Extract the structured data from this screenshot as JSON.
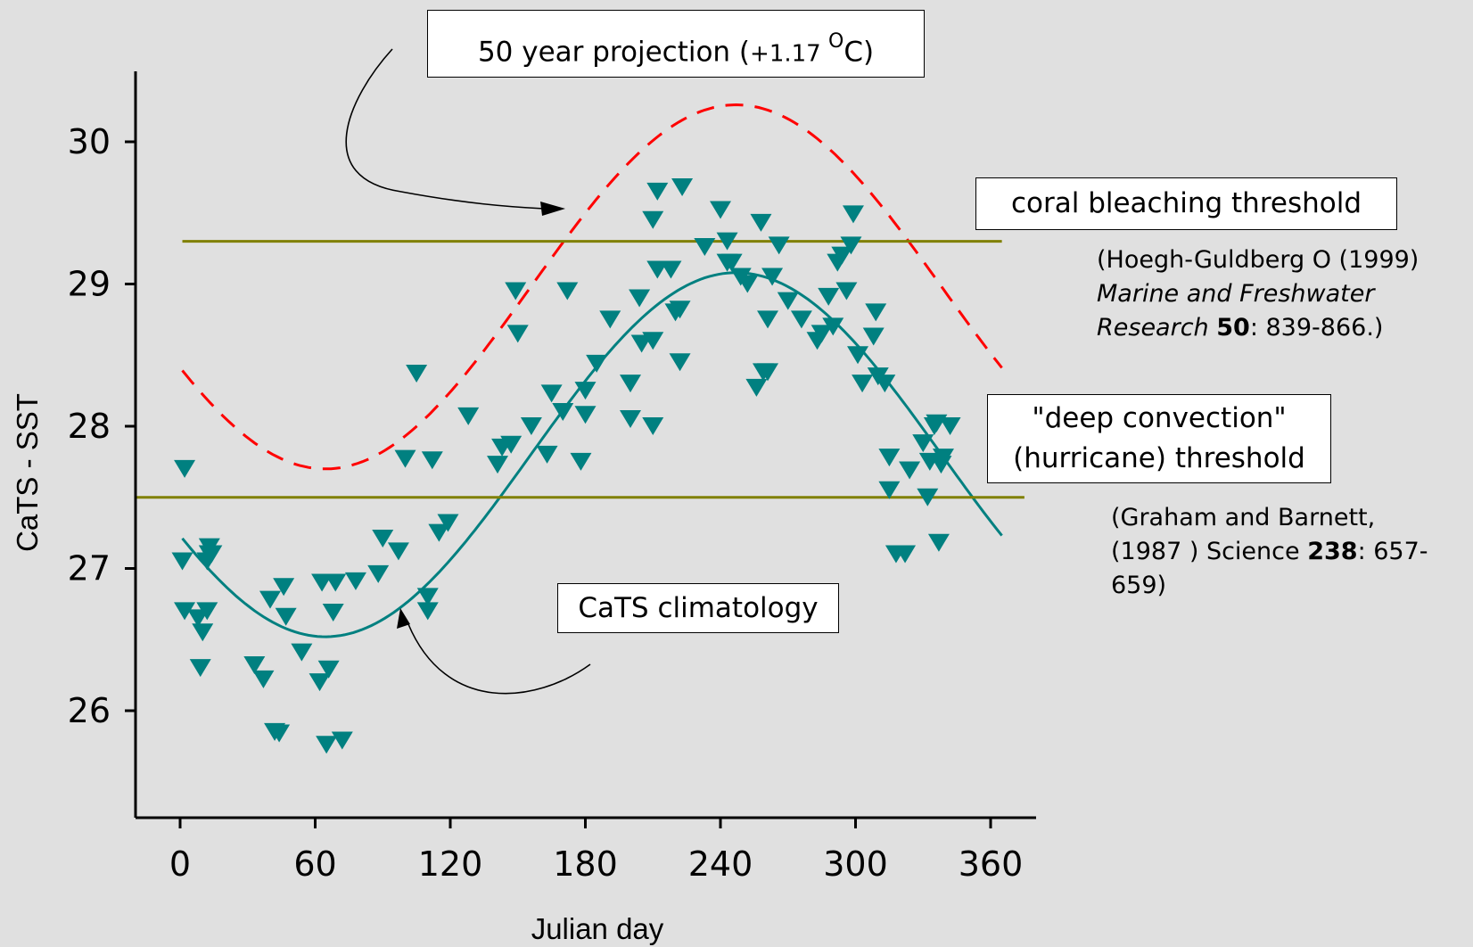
{
  "chart_data": {
    "type": "scatter",
    "title": "",
    "xlabel": "Julian day",
    "ylabel": "CaTS - SST",
    "xlim": [
      -20,
      380
    ],
    "ylim": [
      25.25,
      30.5
    ],
    "xticks": [
      0,
      60,
      120,
      180,
      240,
      300,
      360
    ],
    "yticks": [
      26,
      27,
      28,
      29,
      30
    ],
    "grid": false,
    "colors": {
      "background": "#e0e0e0",
      "points": "#008080",
      "climatology": "#008080",
      "projection": "#ff0000",
      "thresholds": "#808000"
    },
    "series": [
      {
        "kind": "points",
        "marker": "down-triangle",
        "x": [
          2,
          1,
          2,
          8,
          10,
          12,
          14,
          12,
          13,
          9,
          13,
          33,
          37,
          40,
          42,
          44,
          46,
          47,
          54,
          62,
          63,
          65,
          66,
          68,
          69,
          72,
          78,
          88,
          90,
          97,
          100,
          105,
          110,
          110,
          112,
          115,
          119,
          128,
          141,
          143,
          147,
          149,
          150,
          156,
          163,
          165,
          170,
          172,
          178,
          180,
          180,
          185,
          191,
          200,
          200,
          205,
          204,
          210,
          210,
          212,
          210,
          212,
          218,
          220,
          222,
          222,
          223,
          233,
          240,
          243,
          243,
          245,
          249,
          252,
          256,
          259,
          258,
          261,
          261,
          263,
          266,
          270,
          276,
          283,
          285,
          288,
          290,
          292,
          294,
          296,
          298,
          299,
          301,
          303,
          308,
          310,
          309,
          313,
          315,
          315,
          318,
          322,
          324,
          330,
          332,
          333,
          335,
          336,
          337,
          338,
          339,
          342
        ],
        "y": [
          27.7,
          27.05,
          26.7,
          26.65,
          26.55,
          26.7,
          27.1,
          27.05,
          27.1,
          26.3,
          27.15,
          26.32,
          26.22,
          26.78,
          25.85,
          25.84,
          26.87,
          26.66,
          26.41,
          26.2,
          26.9,
          25.76,
          26.29,
          26.69,
          26.9,
          25.79,
          26.91,
          26.96,
          27.21,
          27.12,
          27.77,
          28.37,
          26.7,
          26.8,
          27.76,
          27.25,
          27.32,
          28.07,
          27.73,
          27.85,
          27.87,
          28.95,
          28.65,
          28.0,
          27.8,
          28.23,
          28.1,
          28.95,
          27.75,
          28.08,
          28.25,
          28.44,
          28.75,
          28.3,
          28.05,
          28.58,
          28.9,
          28.0,
          28.6,
          29.1,
          29.45,
          29.65,
          29.1,
          28.8,
          28.82,
          28.45,
          29.68,
          29.26,
          29.52,
          29.3,
          29.15,
          29.15,
          29.05,
          29.0,
          28.27,
          28.38,
          29.43,
          28.75,
          28.38,
          29.05,
          29.27,
          28.88,
          28.75,
          28.6,
          28.65,
          28.91,
          28.7,
          29.15,
          29.2,
          28.95,
          29.27,
          29.49,
          28.5,
          28.3,
          28.63,
          28.35,
          28.8,
          28.3,
          27.55,
          27.78,
          27.1,
          27.1,
          27.69,
          27.88,
          27.5,
          27.75,
          28.0,
          28.02,
          27.18,
          27.73,
          27.78,
          28.0
        ]
      },
      {
        "name": "CaTS climatology",
        "kind": "line",
        "style": "solid",
        "mean": 27.8,
        "amplitude": 1.28,
        "peak_day": 247,
        "period": 365,
        "x_range": [
          1,
          365
        ]
      },
      {
        "name": "50 year projection (+1.17 °C)",
        "kind": "line",
        "style": "dashed",
        "mean": 28.98,
        "amplitude": 1.28,
        "peak_day": 247,
        "period": 365,
        "x_range": [
          1,
          365
        ]
      },
      {
        "name": "coral bleaching threshold",
        "kind": "hline",
        "y": 29.3,
        "x_range": [
          1,
          365
        ]
      },
      {
        "name": "deep convection (hurricane) threshold",
        "kind": "hline",
        "y": 27.5,
        "x_range": [
          -20,
          375
        ]
      }
    ]
  },
  "annotations": {
    "projection_box": {
      "line1": "50 year projection (",
      "line2": "+1.17 ",
      "sup": "O",
      "line3": "C)"
    },
    "coral_box": "coral bleaching threshold",
    "coral_ref": {
      "pre": "(Hoegh-Guldberg O (1999)",
      "journal1": "Marine and Freshwater",
      "journal2": "Research",
      "volume": "50",
      "pages": ": 839-866.)"
    },
    "hurricane_box": {
      "line1": "\"deep convection\"",
      "line2": "(hurricane) threshold"
    },
    "hurricane_ref": {
      "line1": "(Graham and Barnett,",
      "line2a": "(1987 ) Science ",
      "volume": "238",
      "line2b": ":  657-",
      "line3": "659)"
    },
    "climatology_box": "CaTS climatology"
  }
}
